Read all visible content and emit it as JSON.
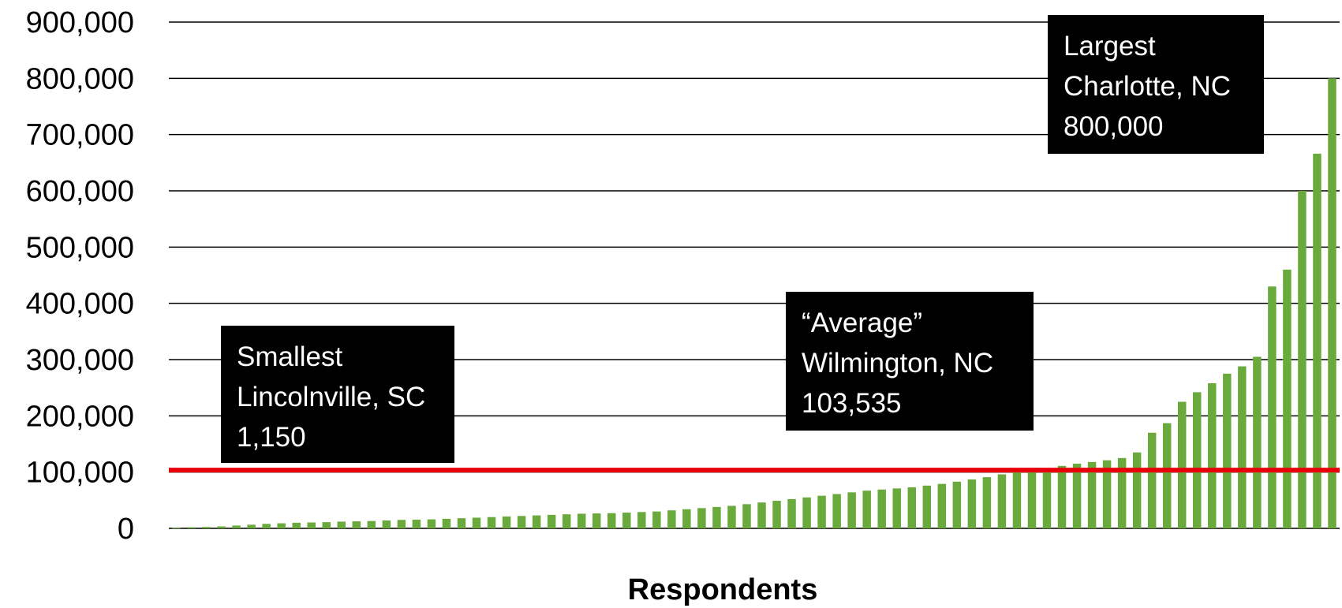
{
  "chart_data": {
    "type": "bar",
    "xlabel": "Respondents",
    "ylabel": "",
    "ylim": [
      0,
      900000
    ],
    "yticks": [
      "900,000",
      "800,000",
      "700,000",
      "600,000",
      "500,000",
      "400,000",
      "300,000",
      "200,000",
      "100,000",
      "0"
    ],
    "grid": true,
    "bar_color": "#6aaa3c",
    "reference_line": {
      "value": 103535,
      "color": "#e8000b"
    },
    "values": [
      1150,
      2000,
      2500,
      3500,
      5000,
      6500,
      8000,
      9000,
      10000,
      10500,
      11000,
      12000,
      12500,
      13000,
      14000,
      15000,
      15500,
      16000,
      17000,
      18000,
      19000,
      20000,
      21000,
      22000,
      23000,
      24000,
      25000,
      26000,
      26500,
      27000,
      28000,
      29000,
      30000,
      32000,
      34000,
      36000,
      38000,
      40000,
      43000,
      46000,
      49000,
      52000,
      55000,
      58000,
      61000,
      64000,
      67000,
      69000,
      71000,
      73000,
      76000,
      79000,
      83000,
      87000,
      91000,
      96000,
      100000,
      103535,
      107000,
      111000,
      115000,
      118000,
      121000,
      125000,
      135000,
      170000,
      187000,
      225000,
      242000,
      258000,
      275000,
      288000,
      305000,
      430000,
      460000,
      600000,
      666000,
      800000
    ]
  },
  "annotations": {
    "smallest": {
      "label": "Smallest",
      "place": "Lincolnville, SC",
      "value": "1,150"
    },
    "average": {
      "label": "“Average”",
      "place": "Wilmington, NC",
      "value": "103,535"
    },
    "largest": {
      "label": "Largest",
      "place": "Charlotte, NC",
      "value": "800,000"
    }
  }
}
